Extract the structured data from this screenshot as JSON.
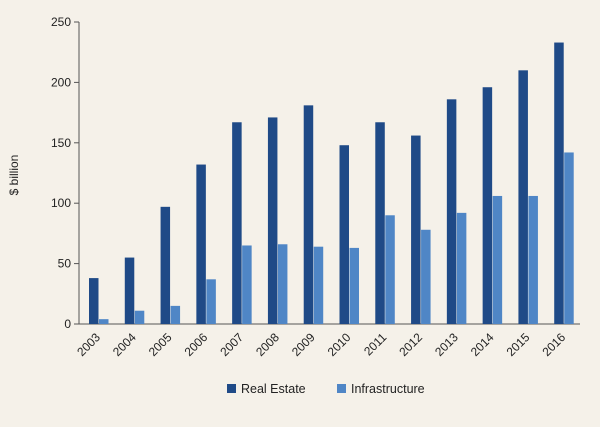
{
  "chart_data": {
    "type": "bar",
    "title": "",
    "xlabel": "",
    "ylabel": "$ billion",
    "ylim": [
      0,
      250
    ],
    "yticks": [
      0,
      50,
      100,
      150,
      200,
      250
    ],
    "grid": false,
    "legend_position": "bottom",
    "categories": [
      "2003",
      "2004",
      "2005",
      "2006",
      "2007",
      "2008",
      "2009",
      "2010",
      "2011",
      "2012",
      "2013",
      "2014",
      "2015",
      "2016"
    ],
    "series": [
      {
        "name": "Real Estate",
        "color": "#1f4a87",
        "values": [
          38,
          55,
          97,
          132,
          167,
          171,
          181,
          148,
          167,
          156,
          186,
          196,
          210,
          233
        ]
      },
      {
        "name": "Infrastructure",
        "color": "#4f86c6",
        "values": [
          4,
          11,
          15,
          37,
          65,
          66,
          64,
          63,
          90,
          78,
          92,
          106,
          106,
          142
        ]
      }
    ]
  }
}
